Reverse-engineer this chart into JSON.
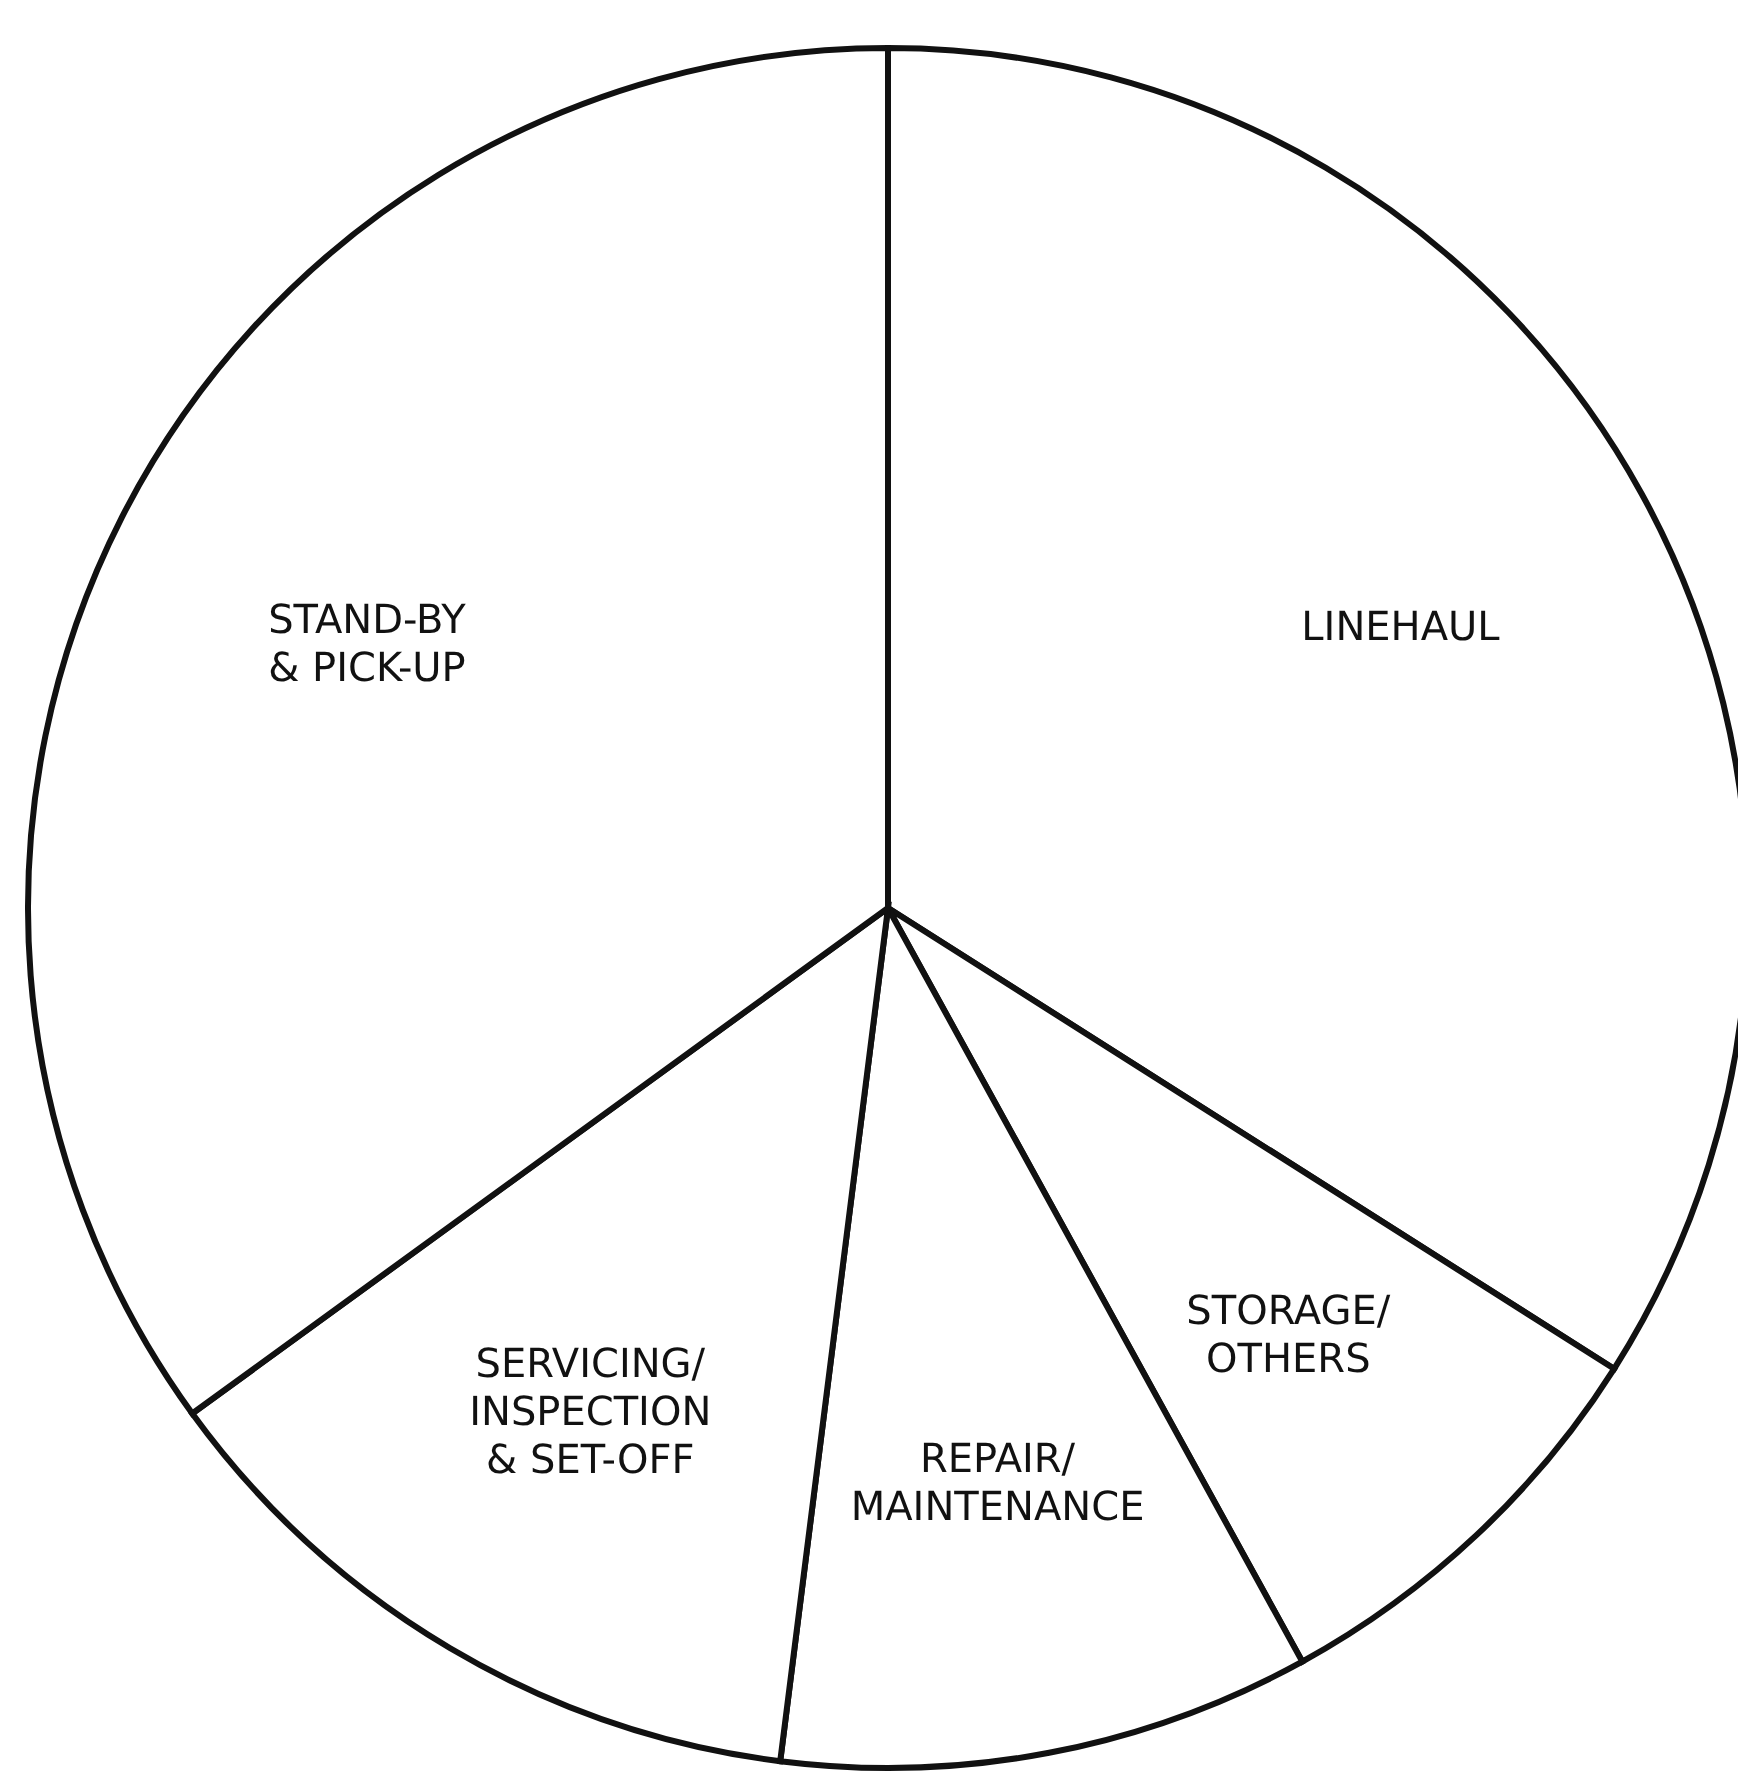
{
  "chart_data": {
    "type": "pie",
    "categories": [
      "LINEHAUL",
      "STORAGE/\nOTHERS",
      "REPAIR/\nMAINTENANCE",
      "SERVICING/\nINSPECTION\n& SET-OFF",
      "STAND-BY\n& PICK-UP"
    ],
    "values": [
      34,
      8,
      10,
      13,
      35
    ],
    "colors": [
      "#ffffff",
      "#ffffff",
      "#ffffff",
      "#ffffff",
      "#ffffff"
    ],
    "legend": false
  }
}
